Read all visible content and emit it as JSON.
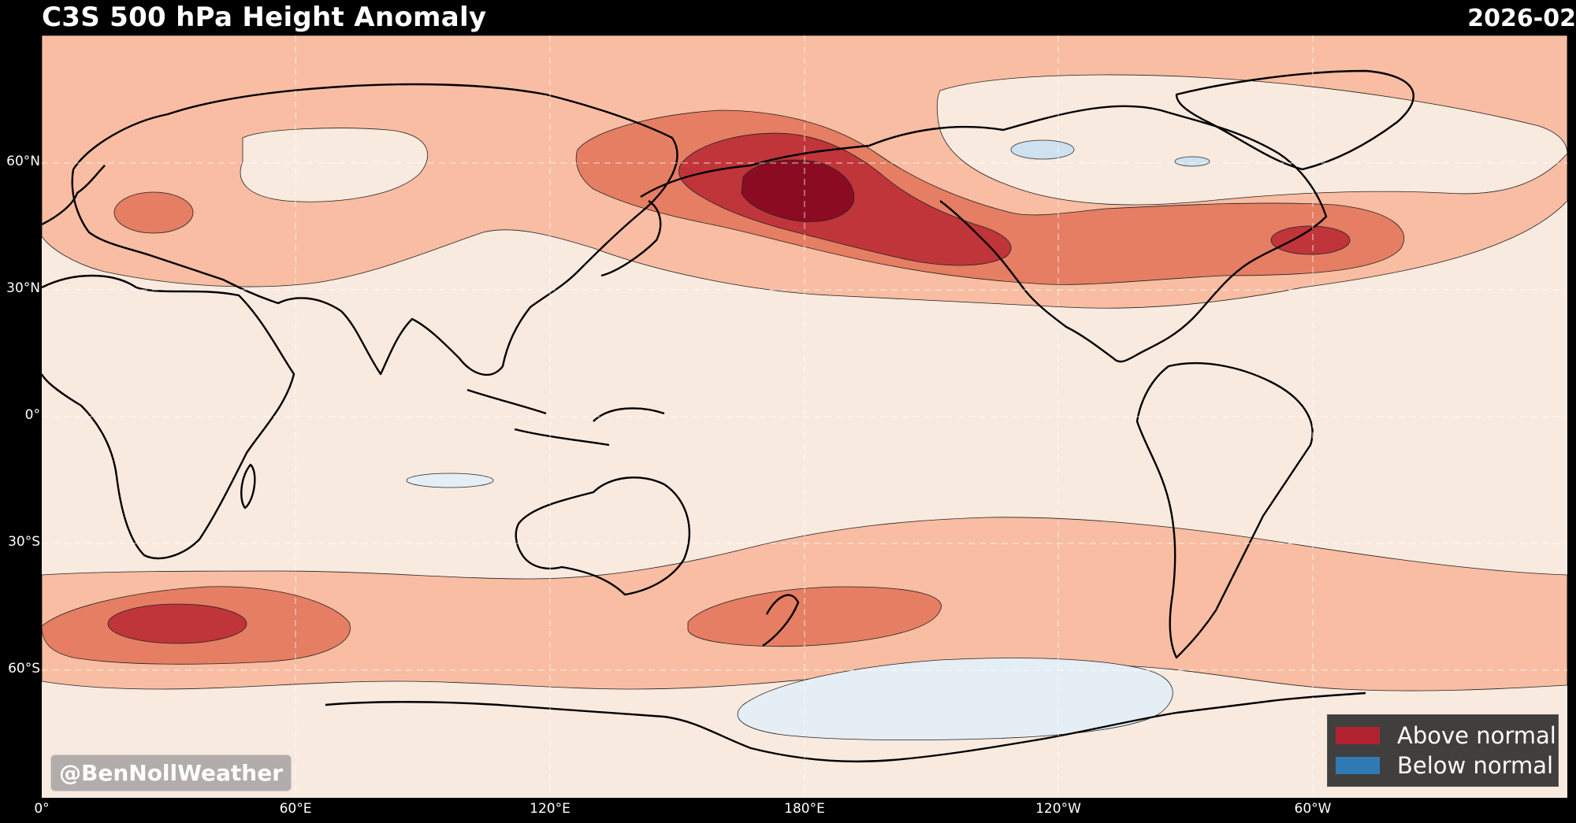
{
  "header": {
    "title": "C3S 500 hPa Height Anomaly",
    "date": "2026-02"
  },
  "axes": {
    "lat_ticks": [
      "60°N",
      "30°N",
      "0°",
      "30°S",
      "60°S"
    ],
    "lon_ticks": [
      "0°",
      "60°E",
      "120°E",
      "180°E",
      "120°W",
      "60°W"
    ]
  },
  "credit": "@BenNollWeather",
  "legend": {
    "placement": "bottom-right",
    "items": [
      {
        "label": "Above normal",
        "color": "#b22230"
      },
      {
        "label": "Below normal",
        "color": "#2f79b5"
      }
    ]
  },
  "colors": {
    "background": "#f9eae0",
    "level1": "#f8bda2",
    "level2": "#e57e63",
    "level3": "#c0353a",
    "level4": "#8b0c22",
    "negative": "#e5eef4",
    "coast": "#000000",
    "lake": "#cfe1ef"
  }
}
